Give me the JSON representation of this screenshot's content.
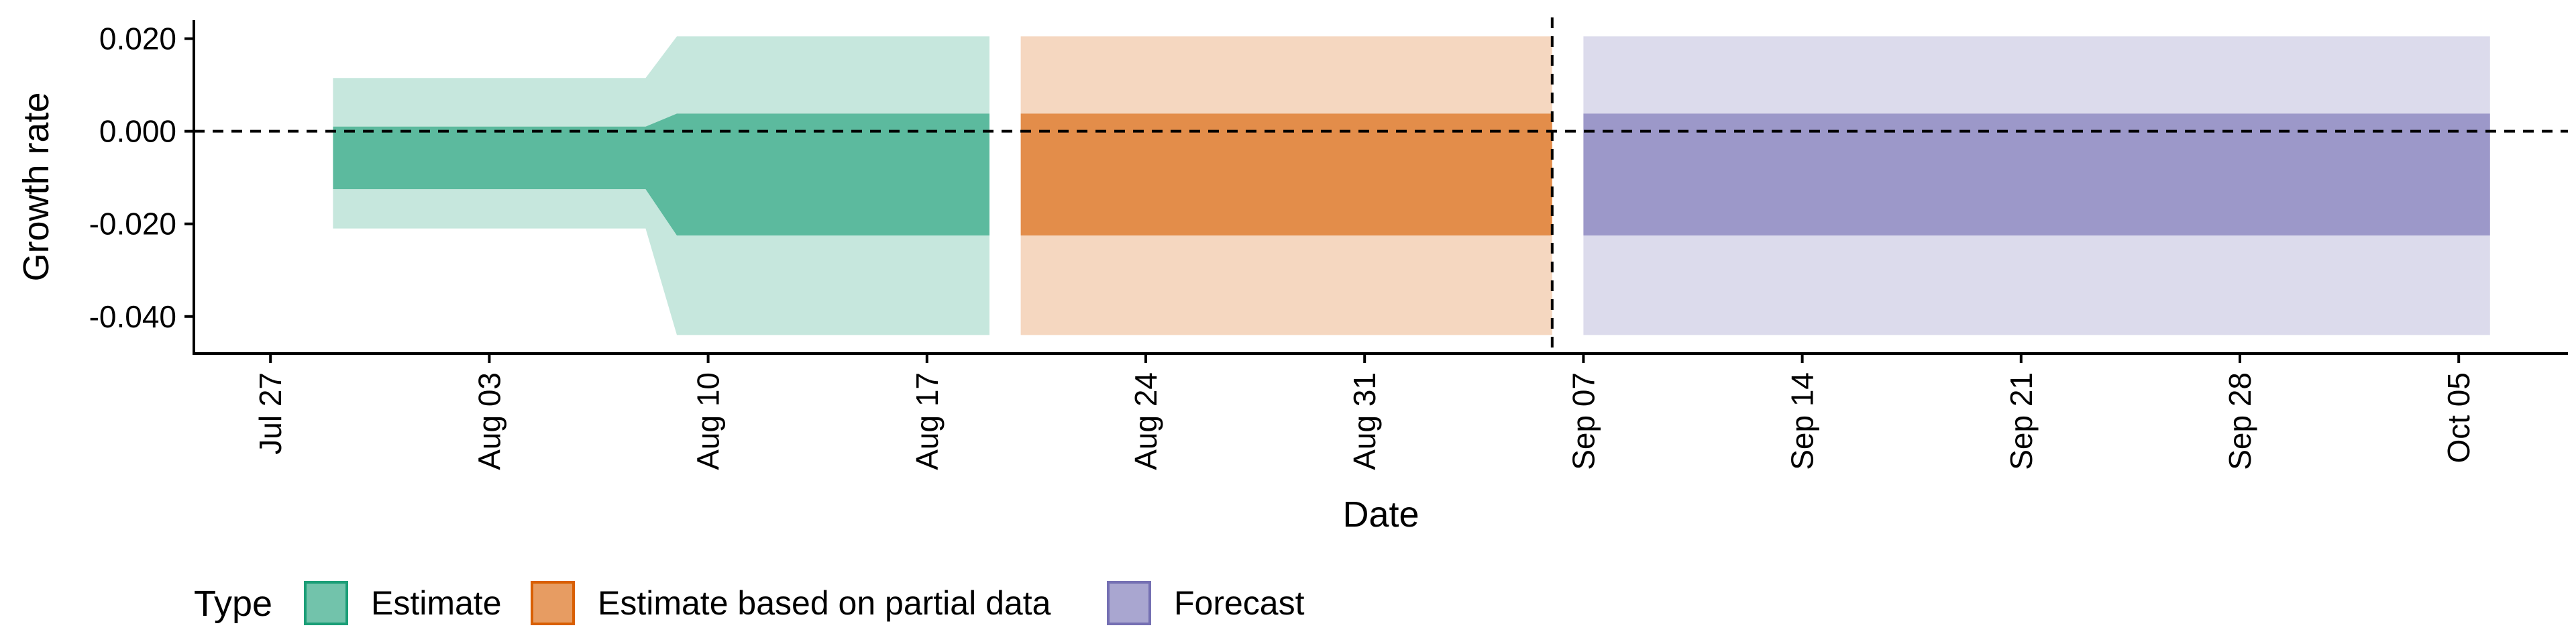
{
  "chart_data": {
    "type": "area",
    "xlabel": "Date",
    "ylabel": "Growth rate",
    "ylim": [
      -0.048,
      0.024
    ],
    "xlim": [
      "2020-07-25",
      "2020-10-08"
    ],
    "y_ticks": [
      {
        "value": 0.02,
        "label": "0.020"
      },
      {
        "value": 0.0,
        "label": "0.000"
      },
      {
        "value": -0.02,
        "label": "-0.020"
      },
      {
        "value": -0.04,
        "label": "-0.040"
      }
    ],
    "x_ticks": [
      {
        "date": "2020-07-27",
        "label": "Jul 27"
      },
      {
        "date": "2020-08-03",
        "label": "Aug 03"
      },
      {
        "date": "2020-08-10",
        "label": "Aug 10"
      },
      {
        "date": "2020-08-17",
        "label": "Aug 17"
      },
      {
        "date": "2020-08-24",
        "label": "Aug 24"
      },
      {
        "date": "2020-08-31",
        "label": "Aug 31"
      },
      {
        "date": "2020-09-07",
        "label": "Sep 07"
      },
      {
        "date": "2020-09-14",
        "label": "Sep 14"
      },
      {
        "date": "2020-09-21",
        "label": "Sep 21"
      },
      {
        "date": "2020-09-28",
        "label": "Sep 28"
      },
      {
        "date": "2020-10-05",
        "label": "Oct 05"
      }
    ],
    "reference_line_y": 0.0,
    "reference_line_date": "2020-09-06",
    "grid": false,
    "legend_position": "bottom-left",
    "legend_title": "Type",
    "series": [
      {
        "name": "Estimate",
        "color": "#1b9e77",
        "points": [
          {
            "date": "2020-07-29",
            "lower_90": -0.021,
            "lower_50": -0.0125,
            "upper_50": 0.001,
            "upper_90": 0.0115
          },
          {
            "date": "2020-08-08",
            "lower_90": -0.021,
            "lower_50": -0.0125,
            "upper_50": 0.001,
            "upper_90": 0.0115
          },
          {
            "date": "2020-08-09",
            "lower_90": -0.044,
            "lower_50": -0.0225,
            "upper_50": 0.0038,
            "upper_90": 0.0205
          },
          {
            "date": "2020-08-19",
            "lower_90": -0.044,
            "lower_50": -0.0225,
            "upper_50": 0.0038,
            "upper_90": 0.0205
          }
        ]
      },
      {
        "name": "Estimate based on partial data",
        "color": "#d95f02",
        "points": [
          {
            "date": "2020-08-20",
            "lower_90": -0.044,
            "lower_50": -0.0225,
            "upper_50": 0.0038,
            "upper_90": 0.0205
          },
          {
            "date": "2020-09-06",
            "lower_90": -0.044,
            "lower_50": -0.0225,
            "upper_50": 0.0038,
            "upper_90": 0.0205
          }
        ]
      },
      {
        "name": "Forecast",
        "color": "#7570b3",
        "points": [
          {
            "date": "2020-09-07",
            "lower_90": -0.044,
            "lower_50": -0.0225,
            "upper_50": 0.0038,
            "upper_90": 0.0205
          },
          {
            "date": "2020-10-06",
            "lower_90": -0.044,
            "lower_50": -0.0225,
            "upper_50": 0.0038,
            "upper_90": 0.0205
          }
        ]
      }
    ]
  }
}
